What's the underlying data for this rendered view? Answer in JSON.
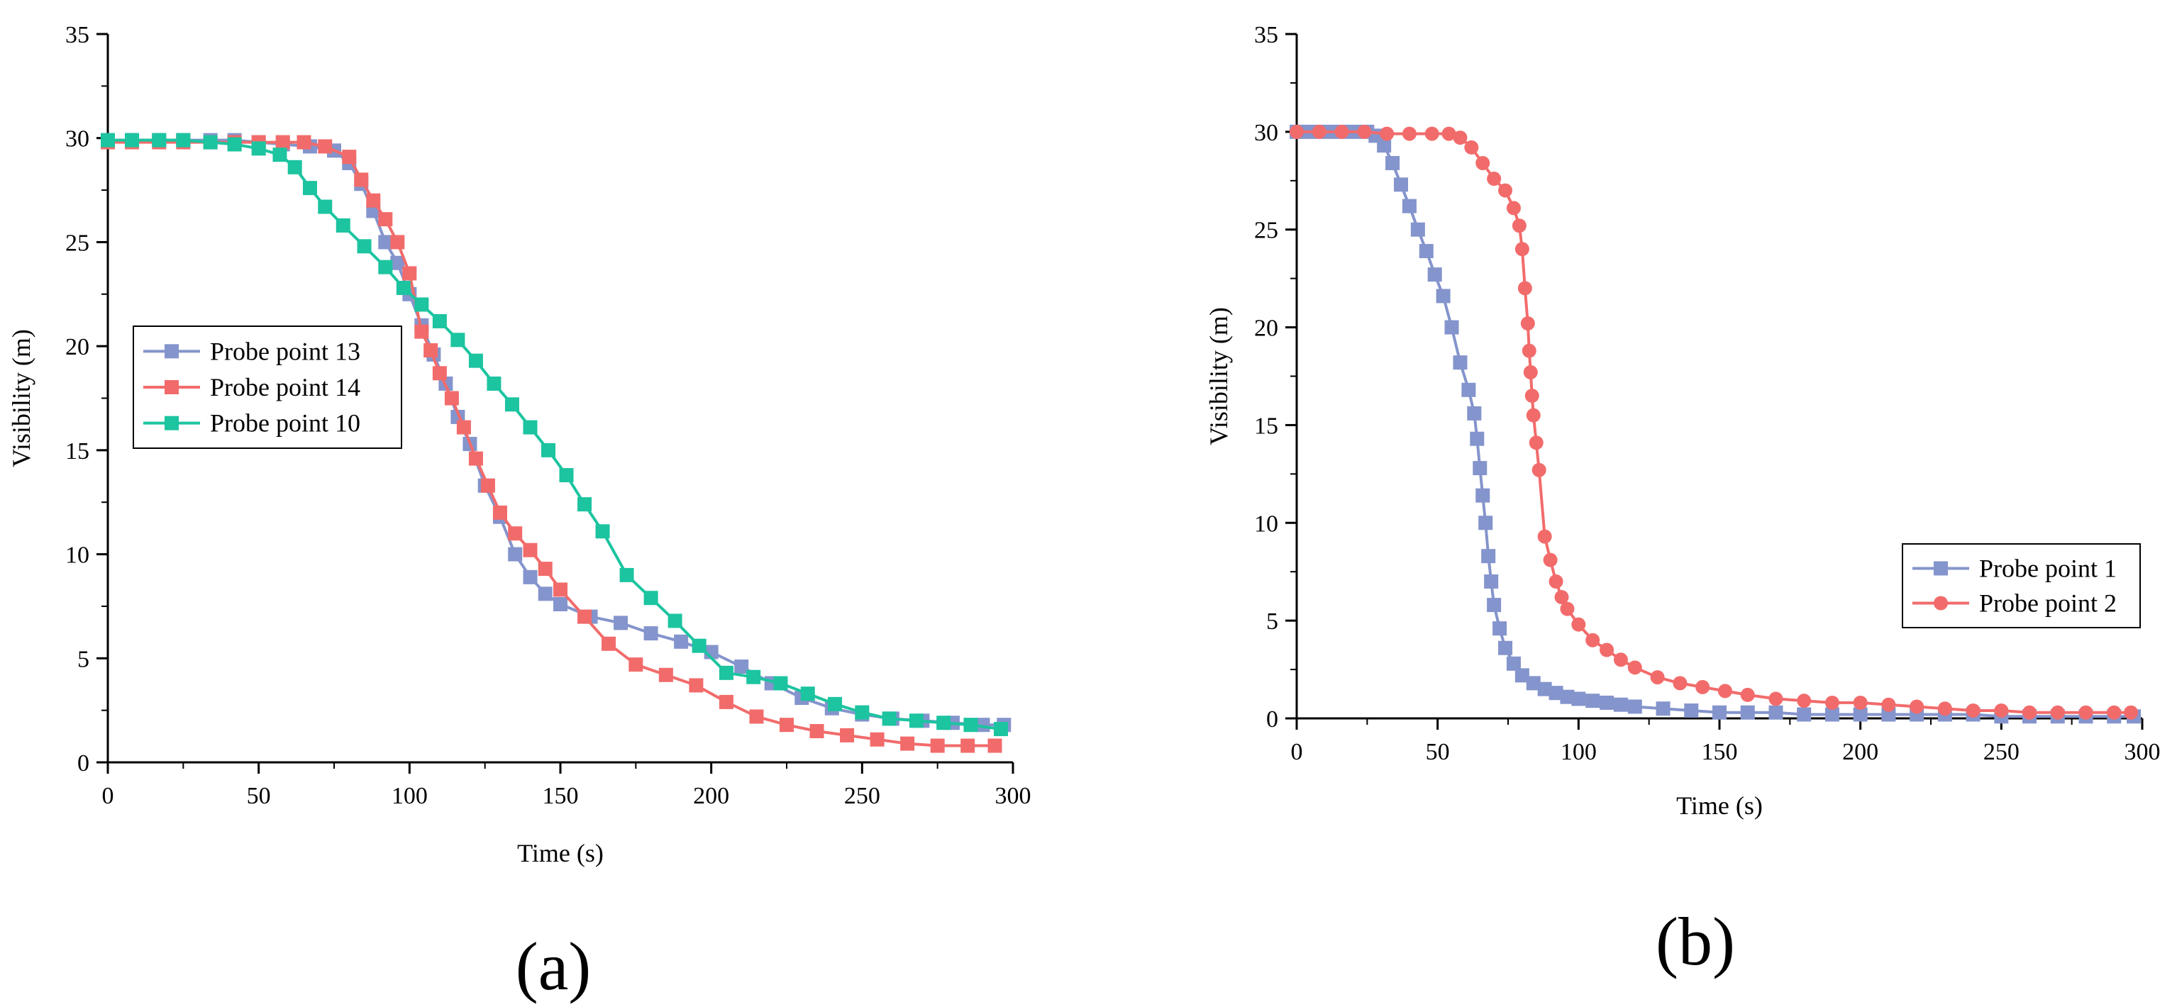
{
  "chart_data": [
    {
      "type": "line",
      "panel_label": "(a)",
      "xlabel": "Time (s)",
      "ylabel": "Visibility (m)",
      "xlim": [
        0,
        300
      ],
      "ylim": [
        0,
        35
      ],
      "xticks": [
        0,
        50,
        100,
        150,
        200,
        250,
        300
      ],
      "yticks": [
        0,
        5,
        10,
        15,
        20,
        25,
        30,
        35
      ],
      "legend_position": "middle-left",
      "series": [
        {
          "name": "Probe point 13",
          "color": "#8494cc",
          "marker": "square",
          "x": [
            0,
            8,
            17,
            25,
            34,
            42,
            50,
            58,
            67,
            75,
            80,
            84,
            88,
            92,
            96,
            100,
            104,
            108,
            112,
            116,
            120,
            125,
            130,
            135,
            140,
            145,
            150,
            160,
            170,
            180,
            190,
            200,
            210,
            220,
            230,
            240,
            250,
            260,
            270,
            280,
            290,
            297
          ],
          "y": [
            29.9,
            29.9,
            29.9,
            29.9,
            29.9,
            29.9,
            29.8,
            29.7,
            29.6,
            29.4,
            28.8,
            27.8,
            26.5,
            25.0,
            24.0,
            22.5,
            21.0,
            19.6,
            18.2,
            16.6,
            15.3,
            13.3,
            11.8,
            10.0,
            8.9,
            8.1,
            7.6,
            7.0,
            6.7,
            6.2,
            5.8,
            5.3,
            4.6,
            3.8,
            3.1,
            2.6,
            2.3,
            2.1,
            2.0,
            1.9,
            1.8,
            1.8
          ]
        },
        {
          "name": "Probe point 14",
          "color": "#f26b6b",
          "marker": "square",
          "x": [
            0,
            8,
            17,
            25,
            34,
            42,
            50,
            58,
            65,
            72,
            80,
            84,
            88,
            92,
            96,
            100,
            104,
            107,
            110,
            114,
            118,
            122,
            126,
            130,
            135,
            140,
            145,
            150,
            158,
            166,
            175,
            185,
            195,
            205,
            215,
            225,
            235,
            245,
            255,
            265,
            275,
            285,
            294
          ],
          "y": [
            29.8,
            29.8,
            29.8,
            29.8,
            29.8,
            29.8,
            29.8,
            29.8,
            29.8,
            29.6,
            29.1,
            28.0,
            27.0,
            26.1,
            25.0,
            23.5,
            20.7,
            19.8,
            18.7,
            17.5,
            16.1,
            14.6,
            13.3,
            12.0,
            11.0,
            10.2,
            9.3,
            8.3,
            7.0,
            5.7,
            4.7,
            4.2,
            3.7,
            2.9,
            2.2,
            1.8,
            1.5,
            1.3,
            1.1,
            0.9,
            0.8,
            0.8,
            0.8
          ]
        },
        {
          "name": "Probe point 10",
          "color": "#1cc4a0",
          "marker": "square",
          "x": [
            0,
            8,
            17,
            25,
            34,
            42,
            50,
            57,
            62,
            67,
            72,
            78,
            85,
            92,
            98,
            104,
            110,
            116,
            122,
            128,
            134,
            140,
            146,
            152,
            158,
            164,
            172,
            180,
            188,
            196,
            205,
            214,
            223,
            232,
            241,
            250,
            259,
            268,
            277,
            286,
            296
          ],
          "y": [
            29.9,
            29.9,
            29.9,
            29.9,
            29.8,
            29.7,
            29.5,
            29.2,
            28.6,
            27.6,
            26.7,
            25.8,
            24.8,
            23.8,
            22.8,
            22.0,
            21.2,
            20.3,
            19.3,
            18.2,
            17.2,
            16.1,
            15.0,
            13.8,
            12.4,
            11.1,
            9.0,
            7.9,
            6.8,
            5.6,
            4.3,
            4.1,
            3.8,
            3.3,
            2.8,
            2.4,
            2.1,
            2.0,
            1.9,
            1.8,
            1.6
          ]
        }
      ]
    },
    {
      "type": "line",
      "panel_label": "(b)",
      "xlabel": "Time (s)",
      "ylabel": "Visibility (m)",
      "xlim": [
        0,
        300
      ],
      "ylim": [
        0,
        35
      ],
      "xticks": [
        0,
        50,
        100,
        150,
        200,
        250,
        300
      ],
      "yticks": [
        0,
        5,
        10,
        15,
        20,
        25,
        30,
        35
      ],
      "legend_position": "lower-right",
      "series": [
        {
          "name": "Probe point 1",
          "color": "#8494cc",
          "marker": "square",
          "x": [
            0,
            5,
            10,
            15,
            20,
            25,
            28,
            31,
            34,
            37,
            40,
            43,
            46,
            49,
            52,
            55,
            58,
            61,
            63,
            64,
            65,
            66,
            67,
            68,
            69,
            70,
            72,
            74,
            77,
            80,
            84,
            88,
            92,
            96,
            100,
            105,
            110,
            115,
            120,
            130,
            140,
            150,
            160,
            170,
            180,
            190,
            200,
            210,
            220,
            230,
            240,
            250,
            260,
            270,
            280,
            290,
            297
          ],
          "y": [
            30.0,
            30.0,
            30.0,
            30.0,
            30.0,
            30.0,
            29.8,
            29.3,
            28.4,
            27.3,
            26.2,
            25.0,
            23.9,
            22.7,
            21.6,
            20.0,
            18.2,
            16.8,
            15.6,
            14.3,
            12.8,
            11.4,
            10.0,
            8.3,
            7.0,
            5.8,
            4.6,
            3.6,
            2.8,
            2.2,
            1.8,
            1.5,
            1.3,
            1.1,
            1.0,
            0.9,
            0.8,
            0.7,
            0.6,
            0.5,
            0.4,
            0.3,
            0.3,
            0.3,
            0.2,
            0.2,
            0.2,
            0.2,
            0.2,
            0.2,
            0.2,
            0.1,
            0.1,
            0.1,
            0.1,
            0.1,
            0.1
          ]
        },
        {
          "name": "Probe point 2",
          "color": "#f26b6b",
          "marker": "circle",
          "x": [
            0,
            8,
            16,
            24,
            32,
            40,
            48,
            54,
            58,
            62,
            66,
            70,
            74,
            77,
            79,
            80,
            81,
            82,
            82.5,
            83,
            83.5,
            84,
            85,
            86,
            88,
            90,
            92,
            94,
            96,
            100,
            105,
            110,
            115,
            120,
            128,
            136,
            144,
            152,
            160,
            170,
            180,
            190,
            200,
            210,
            220,
            230,
            240,
            250,
            260,
            270,
            280,
            290,
            296
          ],
          "y": [
            30.0,
            30.0,
            30.0,
            30.0,
            29.9,
            29.9,
            29.9,
            29.9,
            29.7,
            29.2,
            28.4,
            27.6,
            27.0,
            26.1,
            25.2,
            24.0,
            22.0,
            20.2,
            18.8,
            17.7,
            16.5,
            15.5,
            14.1,
            12.7,
            9.3,
            8.1,
            7.0,
            6.2,
            5.6,
            4.8,
            4.0,
            3.5,
            3.0,
            2.6,
            2.1,
            1.8,
            1.6,
            1.4,
            1.2,
            1.0,
            0.9,
            0.8,
            0.8,
            0.7,
            0.6,
            0.5,
            0.4,
            0.4,
            0.3,
            0.3,
            0.3,
            0.3,
            0.3
          ]
        }
      ]
    }
  ]
}
